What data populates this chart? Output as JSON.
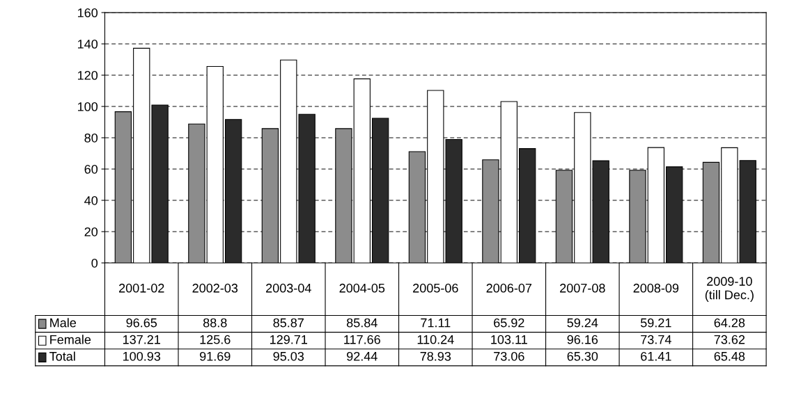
{
  "chart_data": {
    "type": "bar",
    "categories": [
      "2001-02",
      "2002-03",
      "2003-04",
      "2004-05",
      "2005-06",
      "2006-07",
      "2007-08",
      "2008-09",
      "2009-10\n(till Dec.)"
    ],
    "series": [
      {
        "name": "Male",
        "color": "#8c8c8c",
        "values": [
          96.65,
          88.8,
          85.87,
          85.84,
          71.11,
          65.92,
          59.24,
          59.21,
          64.28
        ],
        "value_labels": [
          "96.65",
          "88.8",
          "85.87",
          "85.84",
          "71.11",
          "65.92",
          "59.24",
          "59.21",
          "64.28"
        ]
      },
      {
        "name": "Female",
        "color": "#ffffff",
        "values": [
          137.21,
          125.6,
          129.71,
          117.66,
          110.24,
          103.11,
          96.16,
          73.74,
          73.62
        ],
        "value_labels": [
          "137.21",
          "125.6",
          "129.71",
          "117.66",
          "110.24",
          "103.11",
          "96.16",
          "73.74",
          "73.62"
        ]
      },
      {
        "name": "Total",
        "color": "#2b2b2b",
        "values": [
          100.93,
          91.69,
          95.03,
          92.44,
          78.93,
          73.06,
          65.3,
          61.41,
          65.48
        ],
        "value_labels": [
          "100.93",
          "91.69",
          "95.03",
          "92.44",
          "78.93",
          "73.06",
          "65.30",
          "61.41",
          "65.48"
        ]
      }
    ],
    "ylim": [
      0,
      160
    ],
    "yticks": [
      0,
      20,
      40,
      60,
      80,
      100,
      120,
      140,
      160
    ],
    "grid": "y",
    "legend": "bottom left"
  }
}
